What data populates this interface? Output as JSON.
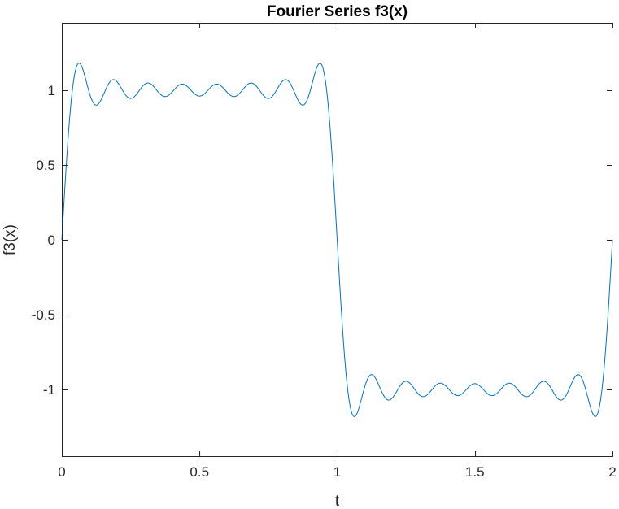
{
  "chart_data": {
    "type": "line",
    "title": "Fourier Series f3(x)",
    "xlabel": "t",
    "ylabel": "f3(x)",
    "xlim": [
      0,
      2
    ],
    "ylim": [
      -1.45,
      1.45
    ],
    "grid": false,
    "box": true,
    "x_ticks": [
      0,
      0.5,
      1,
      1.5,
      2
    ],
    "x_tick_labels": [
      "0",
      "0.5",
      "1",
      "1.5",
      "2"
    ],
    "y_ticks": [
      -1,
      -0.5,
      0,
      0.5,
      1
    ],
    "y_tick_labels": [
      "-1",
      "-0.5",
      "0",
      "0.5",
      "1"
    ],
    "series": [
      {
        "color": "#0072BD",
        "function": "(4/pi) * sum_{k=1,3,5,...,15} sin(k*pi*t)/k",
        "x_range": [
          0,
          2
        ],
        "key_points": [
          {
            "x": 0,
            "y": 0
          },
          {
            "x": 0.0625,
            "y": 1.18
          },
          {
            "x": 0.125,
            "y": 0.9
          },
          {
            "x": 0.5,
            "y": 0.96
          },
          {
            "x": 0.9375,
            "y": 1.18
          },
          {
            "x": 1,
            "y": 0
          },
          {
            "x": 1.0625,
            "y": -1.18
          },
          {
            "x": 1.5,
            "y": -0.96
          },
          {
            "x": 1.9375,
            "y": -1.18
          },
          {
            "x": 2,
            "y": 0
          }
        ]
      }
    ]
  }
}
